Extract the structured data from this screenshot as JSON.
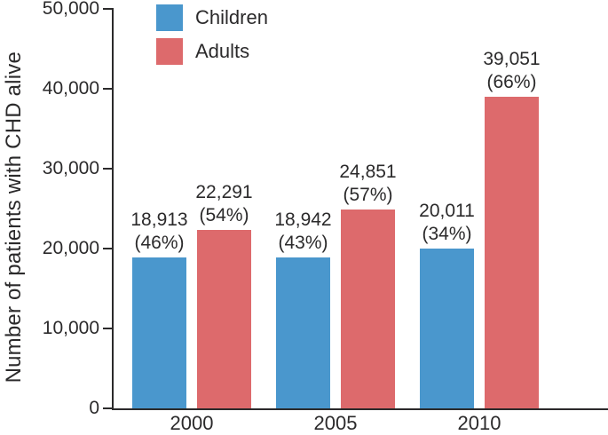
{
  "chart_data": {
    "type": "bar",
    "title": "",
    "ylabel": "Number of patients with CHD alive",
    "xlabel": "",
    "categories": [
      "2000",
      "2005",
      "2010"
    ],
    "series": [
      {
        "name": "Children",
        "color": "#4a97cd",
        "values": [
          18913,
          18942,
          20011
        ],
        "value_labels": [
          "18,913",
          "18,942",
          "20,011"
        ],
        "percent_labels": [
          "(46%)",
          "(43%)",
          "(34%)"
        ]
      },
      {
        "name": "Adults",
        "color": "#dd6a6c",
        "values": [
          22291,
          24851,
          39051
        ],
        "value_labels": [
          "22,291",
          "24,851",
          "39,051"
        ],
        "percent_labels": [
          "(54%)",
          "(57%)",
          "(66%)"
        ]
      }
    ],
    "ylim": [
      0,
      50000
    ],
    "yticks": {
      "values": [
        0,
        10000,
        20000,
        30000,
        40000,
        50000
      ],
      "labels": [
        "0",
        "10,000",
        "20,000",
        "30,000",
        "40,000",
        "50,000"
      ]
    },
    "legend": {
      "position": "top-left-inside",
      "entries": [
        "Children",
        "Adults"
      ]
    },
    "grid": false,
    "axis_color": "#2b2a2b",
    "text_color": "#2b2a2b"
  }
}
